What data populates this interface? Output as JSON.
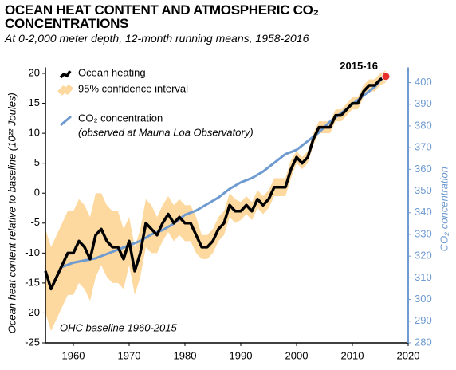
{
  "chart_data": {
    "type": "line",
    "title": "OCEAN HEAT CONTENT AND ATMOSPHERIC CO₂ CONCENTRATIONS",
    "subtitle": "At 0-2,000 meter depth, 12-month running means, 1958-2016",
    "y_label": "Ocean heat content relative to baseline (10²² Joules)",
    "y2_label": "CO₂ concentration",
    "legend_note": "(observed at Mauna Loa Observatory)",
    "annotations": [
      {
        "text": "2015-16"
      },
      {
        "text": "OHC baseline 1960-2015"
      }
    ],
    "xlim": [
      1955,
      2020
    ],
    "xticks": [
      1960,
      1970,
      1980,
      1990,
      2000,
      2010,
      2020
    ],
    "ylim": [
      -25,
      21
    ],
    "yticks": [
      -25,
      -20,
      -15,
      -10,
      -5,
      0,
      5,
      10,
      15,
      20
    ],
    "y2lim": [
      280,
      407
    ],
    "y2ticks": [
      280,
      290,
      300,
      310,
      320,
      330,
      340,
      350,
      360,
      370,
      380,
      390,
      400
    ],
    "x": [
      1955,
      1956,
      1957,
      1958,
      1959,
      1960,
      1961,
      1962,
      1963,
      1964,
      1965,
      1966,
      1967,
      1968,
      1969,
      1970,
      1971,
      1972,
      1973,
      1974,
      1975,
      1976,
      1977,
      1978,
      1979,
      1980,
      1981,
      1982,
      1983,
      1984,
      1985,
      1986,
      1987,
      1988,
      1989,
      1990,
      1991,
      1992,
      1993,
      1994,
      1995,
      1996,
      1997,
      1998,
      1999,
      2000,
      2001,
      2002,
      2003,
      2004,
      2005,
      2006,
      2007,
      2008,
      2009,
      2010,
      2011,
      2012,
      2013,
      2014,
      2015,
      2016
    ],
    "series": [
      {
        "name": "Ocean heating",
        "color": "#000000",
        "values": [
          -13,
          -16,
          -14,
          -12,
          -10,
          -10,
          -8,
          -9,
          -11,
          -7,
          -6,
          -8,
          -9,
          -9,
          -11,
          -8,
          -13,
          -10,
          -5,
          -6,
          -7,
          -5,
          -3.5,
          -5,
          -4,
          -5,
          -5,
          -7,
          -9,
          -9,
          -8,
          -6,
          -5,
          -2,
          -3,
          -3,
          -2,
          -3,
          -1,
          -2,
          -1,
          1,
          1,
          1,
          4,
          6,
          5,
          6,
          9,
          11,
          11,
          11,
          13,
          13,
          14,
          15,
          15,
          17,
          18,
          18,
          19,
          19.5
        ]
      },
      {
        "name": "95% confidence interval",
        "color": "#fdd9a0",
        "lower": [
          -20,
          -23,
          -21,
          -19,
          -17,
          -17,
          -15,
          -16,
          -18,
          -14,
          -12,
          -14,
          -15,
          -15,
          -16,
          -12,
          -17,
          -14,
          -9,
          -10,
          -10,
          -8,
          -6.5,
          -8,
          -7,
          -8,
          -8,
          -10,
          -11,
          -11,
          -10,
          -8,
          -7,
          -4,
          -5,
          -4.5,
          -3.5,
          -4.5,
          -2.5,
          -3.5,
          -2.5,
          -0.5,
          -0.5,
          -0.5,
          2.5,
          5,
          4,
          5,
          8,
          10,
          10,
          10,
          12,
          12,
          13,
          14,
          14,
          16,
          17,
          17,
          18,
          18.5
        ],
        "upper": [
          -6,
          -9,
          -7,
          -5,
          -3,
          -3,
          -1,
          -2,
          -4,
          0,
          0,
          -2,
          -3,
          -3,
          -6,
          -4,
          -9,
          -6,
          -1,
          -2,
          -4,
          -2,
          -0.5,
          -2,
          -1,
          -2,
          -2,
          -4,
          -7,
          -7,
          -6,
          -4,
          -3,
          0,
          -1,
          -1.5,
          -0.5,
          -1.5,
          0.5,
          -0.5,
          0.5,
          2.5,
          2.5,
          2.5,
          5.5,
          7,
          6,
          7,
          10,
          12,
          12,
          12,
          14,
          14,
          15,
          16,
          16,
          18,
          19,
          19,
          20,
          20.5
        ]
      },
      {
        "name": "CO₂ concentration",
        "color": "#6f9bd1",
        "axis": "y2",
        "x": [
          1958,
          1960,
          1962,
          1964,
          1966,
          1968,
          1970,
          1972,
          1974,
          1976,
          1978,
          1980,
          1982,
          1984,
          1986,
          1988,
          1990,
          1992,
          1994,
          1996,
          1998,
          2000,
          2002,
          2004,
          2006,
          2008,
          2010,
          2012,
          2014,
          2016
        ],
        "values": [
          315,
          317,
          318,
          319,
          321,
          323,
          325,
          327,
          330,
          332,
          335,
          339,
          341,
          344,
          347,
          351,
          354,
          356,
          359,
          363,
          367,
          369,
          373,
          377,
          382,
          386,
          390,
          394,
          398,
          404
        ]
      }
    ],
    "marker_color": "#e8312a"
  }
}
